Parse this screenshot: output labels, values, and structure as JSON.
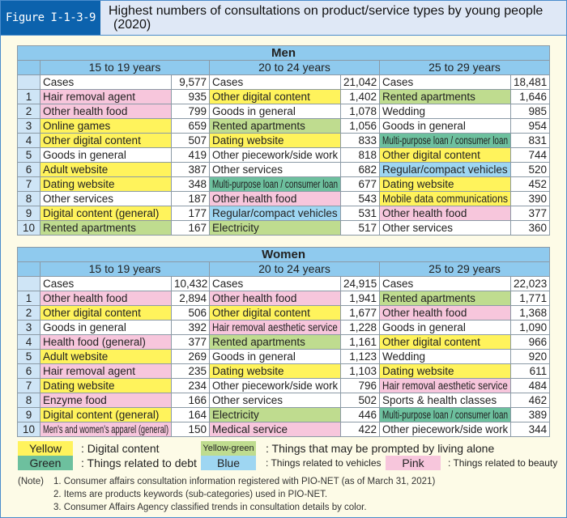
{
  "figure_label": "Figure I-1-3-9",
  "title_line1": "Highest numbers of consultations on product/service types by young people",
  "title_line2": "(2020)",
  "colors": {
    "Y": "#fff35c",
    "YG": "#bfdc8f",
    "G": "#6dc09e",
    "B": "#9ed6f2",
    "P": "#f7c6dc",
    "header": "#8fcaee",
    "rank": "#cfe5f6"
  },
  "tables": {
    "men": {
      "heading": "Men",
      "cases_label": "Cases",
      "ranks": [
        "1",
        "2",
        "3",
        "4",
        "5",
        "6",
        "7",
        "8",
        "9",
        "10"
      ],
      "columns": [
        {
          "age": "15 to 19 years",
          "cases": "9,577",
          "items": [
            {
              "name": "Hair removal agent",
              "count": "935",
              "color": "P"
            },
            {
              "name": "Other health food",
              "count": "799",
              "color": "P"
            },
            {
              "name": "Online games",
              "count": "659",
              "color": "Y"
            },
            {
              "name": "Other digital content",
              "count": "507",
              "color": "Y"
            },
            {
              "name": "Goods in general",
              "count": "419",
              "color": ""
            },
            {
              "name": "Adult website",
              "count": "387",
              "color": "Y"
            },
            {
              "name": "Dating website",
              "count": "348",
              "color": "Y"
            },
            {
              "name": "Other services",
              "count": "187",
              "color": ""
            },
            {
              "name": "Digital content (general)",
              "count": "177",
              "color": "Y"
            },
            {
              "name": "Rented apartments",
              "count": "167",
              "color": "YG"
            }
          ]
        },
        {
          "age": "20 to 24 years",
          "cases": "21,042",
          "items": [
            {
              "name": "Other digital content",
              "count": "1,402",
              "color": "Y"
            },
            {
              "name": "Goods in general",
              "count": "1,078",
              "color": ""
            },
            {
              "name": "Rented apartments",
              "count": "1,056",
              "color": "YG"
            },
            {
              "name": "Dating website",
              "count": "833",
              "color": "Y"
            },
            {
              "name": "Other piecework/side work",
              "count": "818",
              "color": ""
            },
            {
              "name": "Other services",
              "count": "682",
              "color": ""
            },
            {
              "name": "Multi-purpose loan / consumer loan",
              "count": "677",
              "color": "G"
            },
            {
              "name": "Other health food",
              "count": "543",
              "color": "P"
            },
            {
              "name": "Regular/compact vehicles",
              "count": "531",
              "color": "B"
            },
            {
              "name": "Electricity",
              "count": "517",
              "color": "YG"
            }
          ]
        },
        {
          "age": "25 to 29 years",
          "cases": "18,481",
          "items": [
            {
              "name": "Rented apartments",
              "count": "1,646",
              "color": "YG"
            },
            {
              "name": "Wedding",
              "count": "985",
              "color": ""
            },
            {
              "name": "Goods in general",
              "count": "954",
              "color": ""
            },
            {
              "name": "Multi-purpose loan / consumer loan",
              "count": "831",
              "color": "G"
            },
            {
              "name": "Other digital content",
              "count": "744",
              "color": "Y"
            },
            {
              "name": "Regular/compact vehicles",
              "count": "520",
              "color": "B"
            },
            {
              "name": "Dating website",
              "count": "452",
              "color": "Y"
            },
            {
              "name": "Mobile data communications",
              "count": "390",
              "color": "Y"
            },
            {
              "name": "Other health food",
              "count": "377",
              "color": "P"
            },
            {
              "name": "Other services",
              "count": "360",
              "color": ""
            }
          ]
        }
      ]
    },
    "women": {
      "heading": "Women",
      "cases_label": "Cases",
      "ranks": [
        "1",
        "2",
        "3",
        "4",
        "5",
        "6",
        "7",
        "8",
        "9",
        "10"
      ],
      "columns": [
        {
          "age": "15 to 19 years",
          "cases": "10,432",
          "items": [
            {
              "name": "Other health food",
              "count": "2,894",
              "color": "P"
            },
            {
              "name": "Other digital content",
              "count": "506",
              "color": "Y"
            },
            {
              "name": "Goods in general",
              "count": "392",
              "color": ""
            },
            {
              "name": "Health food (general)",
              "count": "377",
              "color": "P"
            },
            {
              "name": "Adult website",
              "count": "269",
              "color": "Y"
            },
            {
              "name": "Hair removal agent",
              "count": "235",
              "color": "P"
            },
            {
              "name": "Dating website",
              "count": "234",
              "color": "Y"
            },
            {
              "name": "Enzyme food",
              "count": "166",
              "color": "P"
            },
            {
              "name": "Digital content (general)",
              "count": "164",
              "color": "Y"
            },
            {
              "name": "Men's and women's apparel (general)",
              "count": "150",
              "color": "P"
            }
          ]
        },
        {
          "age": "20 to 24 years",
          "cases": "24,915",
          "items": [
            {
              "name": "Other health food",
              "count": "1,941",
              "color": "P"
            },
            {
              "name": "Other digital content",
              "count": "1,677",
              "color": "Y"
            },
            {
              "name": "Hair removal aesthetic service",
              "count": "1,228",
              "color": "P"
            },
            {
              "name": "Rented apartments",
              "count": "1,161",
              "color": "YG"
            },
            {
              "name": "Goods in general",
              "count": "1,123",
              "color": ""
            },
            {
              "name": "Dating website",
              "count": "1,103",
              "color": "Y"
            },
            {
              "name": "Other piecework/side work",
              "count": "796",
              "color": ""
            },
            {
              "name": "Other services",
              "count": "502",
              "color": ""
            },
            {
              "name": "Electricity",
              "count": "446",
              "color": "YG"
            },
            {
              "name": "Medical service",
              "count": "422",
              "color": "P"
            }
          ]
        },
        {
          "age": "25 to 29 years",
          "cases": "22,023",
          "items": [
            {
              "name": "Rented apartments",
              "count": "1,771",
              "color": "YG"
            },
            {
              "name": "Other health food",
              "count": "1,368",
              "color": "P"
            },
            {
              "name": "Goods in general",
              "count": "1,090",
              "color": ""
            },
            {
              "name": "Other digital content",
              "count": "966",
              "color": "Y"
            },
            {
              "name": "Wedding",
              "count": "920",
              "color": ""
            },
            {
              "name": "Dating website",
              "count": "611",
              "color": "Y"
            },
            {
              "name": "Hair removal aesthetic service",
              "count": "484",
              "color": "P"
            },
            {
              "name": "Sports & health classes",
              "count": "462",
              "color": ""
            },
            {
              "name": "Multi-purpose loan / consumer loan",
              "count": "389",
              "color": "G"
            },
            {
              "name": "Other piecework/side work",
              "count": "344",
              "color": ""
            }
          ]
        }
      ]
    }
  },
  "legend": [
    {
      "label": "Yellow",
      "desc": ": Digital content",
      "color": "Y"
    },
    {
      "label": "Yellow-green",
      "desc": ": Things that may be prompted by living alone",
      "color": "YG"
    },
    {
      "label": "Green",
      "desc": ": Things related to debt",
      "color": "G"
    },
    {
      "label": "Blue",
      "desc": ": Things related to vehicles",
      "color": "B"
    },
    {
      "label": "Pink",
      "desc": ": Things related to beauty",
      "color": "P"
    }
  ],
  "notes": {
    "label": "(Note)",
    "items": [
      "1. Consumer affairs consultation information registered with PIO-NET (as of March 31, 2021)",
      "2. Items are products keywords (sub-categories) used in PIO-NET.",
      "3. Consumer Affairs Agency classified trends in consultation details by color."
    ]
  }
}
